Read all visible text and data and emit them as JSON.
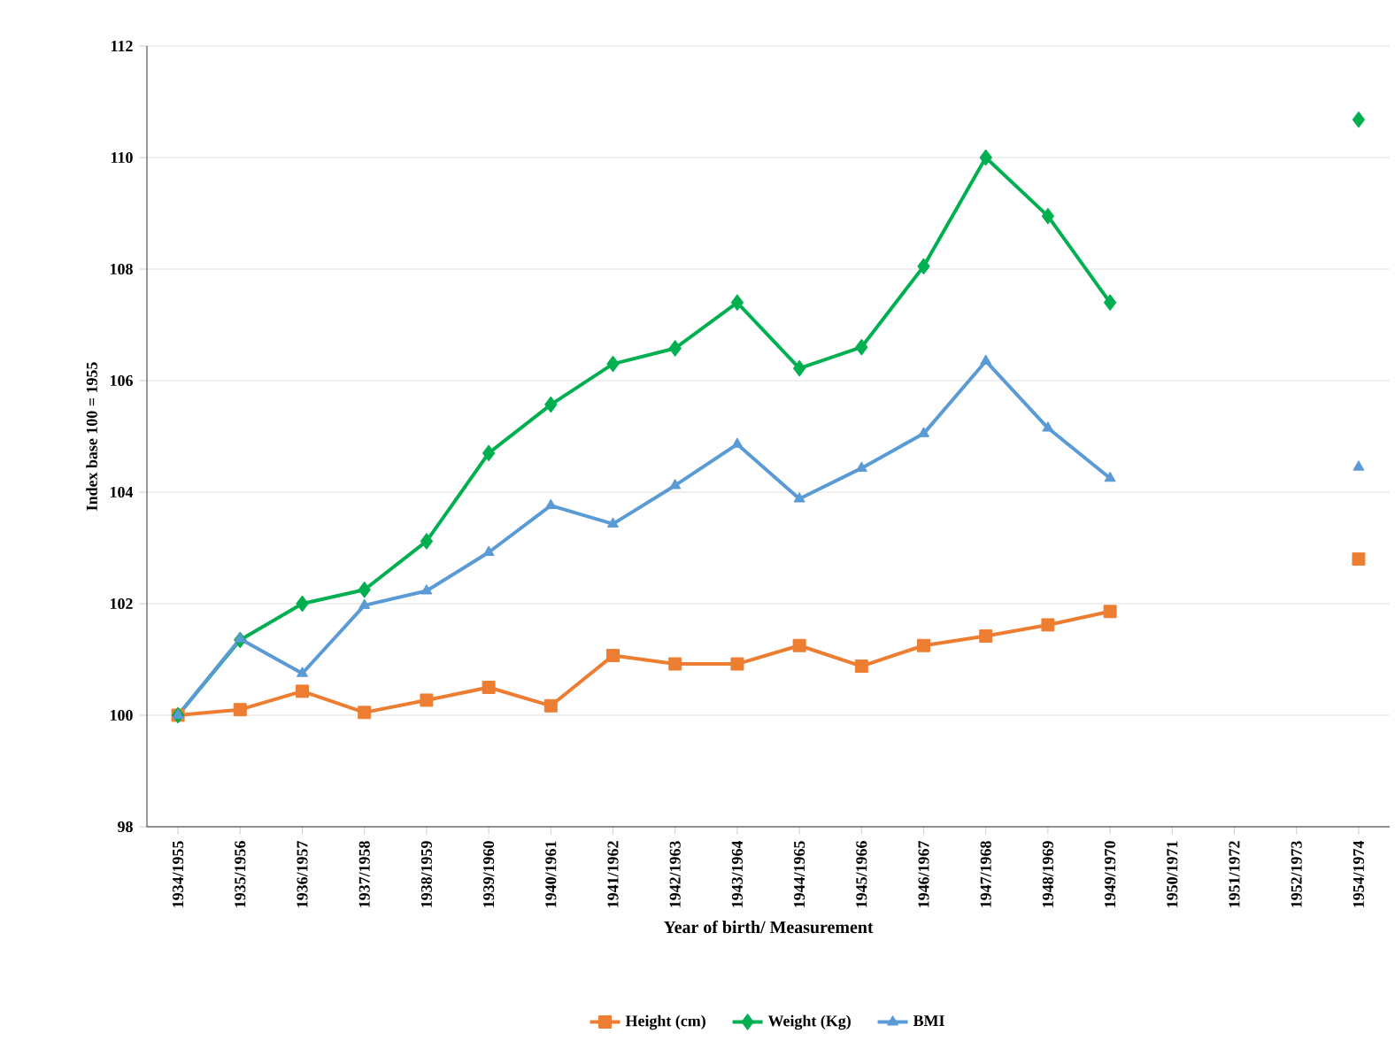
{
  "chart_data": {
    "type": "line",
    "xlabel": "Year of birth/ Measurement",
    "ylabel": "Index base 100 = 1955",
    "categories": [
      "1934/1955",
      "1935/1956",
      "1936/1957",
      "1937/1958",
      "1938/1959",
      "1939/1960",
      "1940/1961",
      "1941/1962",
      "1942/1963",
      "1943/1964",
      "1944/1965",
      "1945/1966",
      "1946/1967",
      "1947/1968",
      "1948/1969",
      "1949/1970",
      "1950/1971",
      "1951/1972",
      "1952/1973",
      "1954/1974"
    ],
    "series": [
      {
        "name": "Height (cm)",
        "color": "#ed7d31",
        "marker": "square",
        "values": [
          100,
          100.1,
          100.43,
          100.05,
          100.27,
          100.5,
          100.17,
          101.07,
          100.92,
          100.92,
          101.25,
          100.88,
          101.25,
          101.42,
          101.62,
          101.86,
          null,
          null,
          null,
          102.8
        ]
      },
      {
        "name": "Weight (Kg)",
        "color": "#00b050",
        "marker": "diamond",
        "values": [
          100,
          101.35,
          102.0,
          102.25,
          103.12,
          104.7,
          105.57,
          106.3,
          106.58,
          107.4,
          106.22,
          106.6,
          108.05,
          110.0,
          108.95,
          107.4,
          null,
          null,
          null,
          110.68
        ]
      },
      {
        "name": "BMI",
        "color": "#5b9bd5",
        "marker": "triangle",
        "values": [
          100,
          101.37,
          100.75,
          101.97,
          102.23,
          102.92,
          103.76,
          103.43,
          104.12,
          104.86,
          103.88,
          104.43,
          105.05,
          106.35,
          105.15,
          104.25,
          null,
          null,
          null,
          104.45
        ]
      }
    ],
    "ylim": [
      98,
      112
    ],
    "yticks": [
      98,
      100,
      102,
      104,
      106,
      108,
      110,
      112
    ],
    "grid": "y",
    "legend": "bottom",
    "line_style": "solid"
  }
}
